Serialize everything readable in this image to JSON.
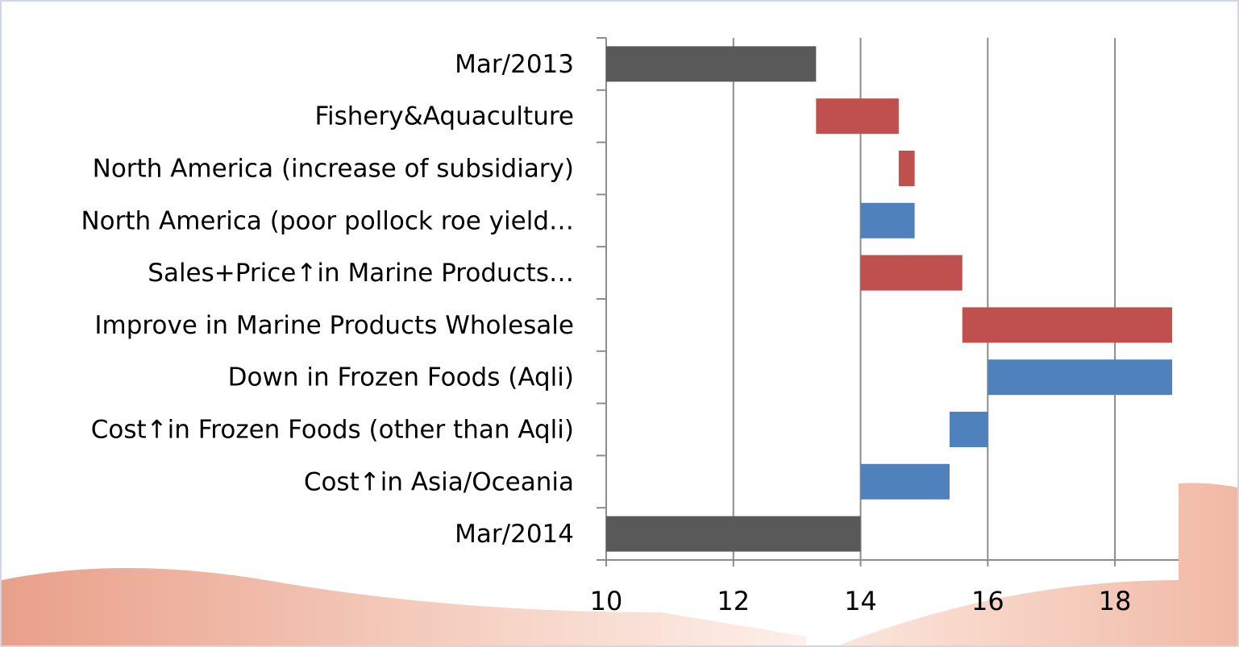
{
  "chart_data": {
    "type": "waterfall",
    "categories": [
      "Mar/2013",
      "Fishery&Aquaculture",
      "North America (increase of subsidiary)",
      "North America (poor pollock roe yield…",
      "Sales+Price↑in Marine Products…",
      "Improve in Marine Products Wholesale",
      "Down in Frozen Foods (Aqli)",
      "Cost↑in Frozen Foods (other than Aqli)",
      "Cost↑in Asia/Oceania",
      "Mar/2014"
    ],
    "values": [
      13.3,
      1.3,
      0.25,
      -0.85,
      1.6,
      3.3,
      -2.9,
      -0.6,
      -1.4,
      14.0
    ],
    "totals": [
      0,
      9
    ],
    "colors": {
      "total": "#595959",
      "increase": "#c0504d",
      "decrease": "#4f81bd"
    },
    "xlim": [
      10,
      19
    ],
    "xticks": [
      10,
      12,
      14,
      16,
      18
    ],
    "grid": true
  }
}
